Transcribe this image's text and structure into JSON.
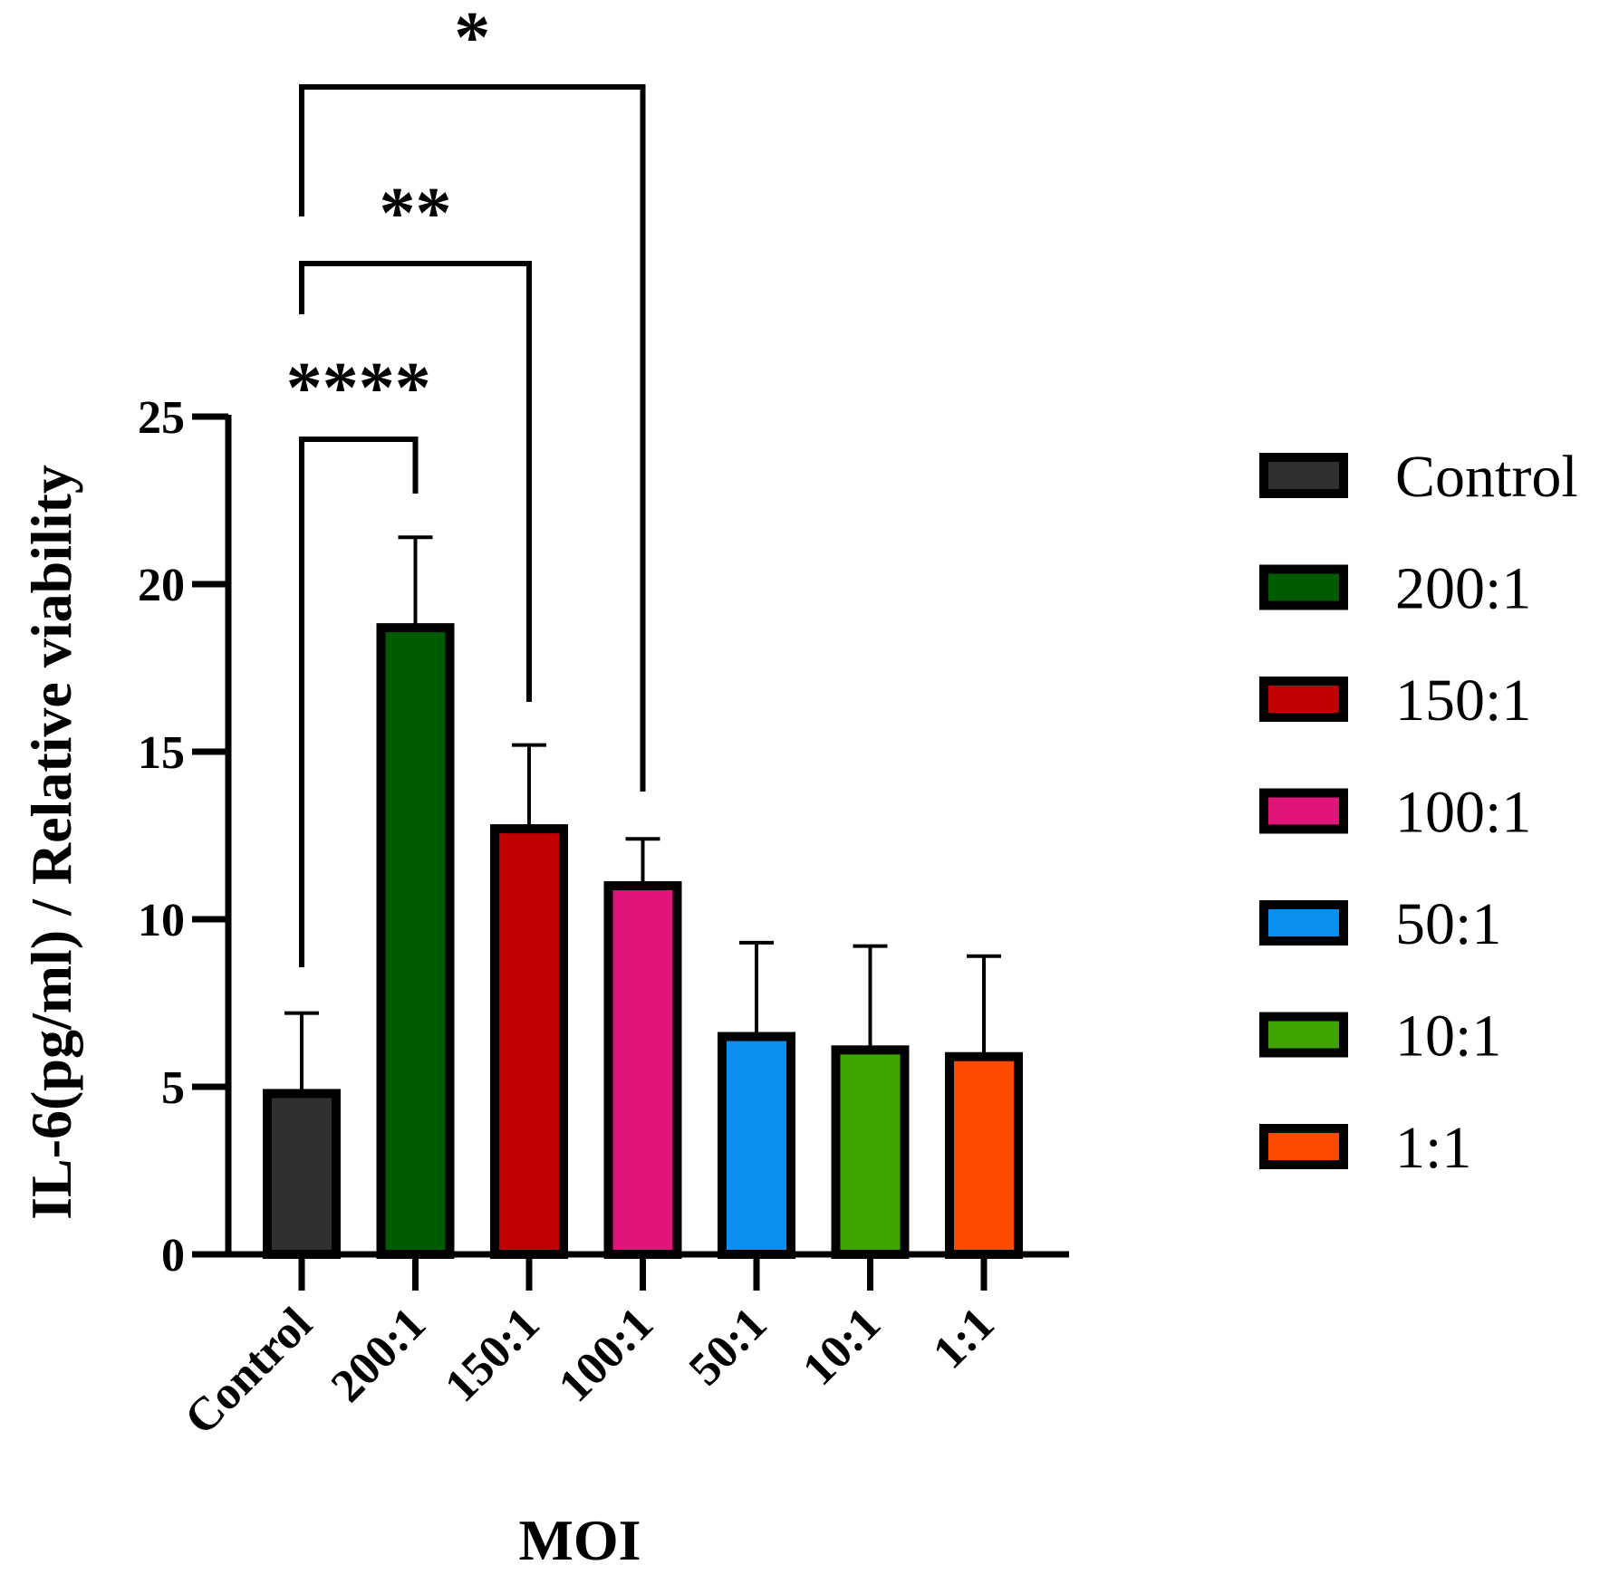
{
  "chart_data": {
    "type": "bar",
    "title": "",
    "xlabel": "MOI",
    "ylabel": "IL-6(pg/ml) / Relative viability",
    "ylim": [
      0,
      25
    ],
    "yticks": [
      0,
      5,
      10,
      15,
      20,
      25
    ],
    "categories": [
      "Control",
      "200:1",
      "150:1",
      "100:1",
      "50:1",
      "10:1",
      "1:1"
    ],
    "values": [
      4.8,
      18.7,
      12.7,
      11.0,
      6.5,
      6.1,
      5.9
    ],
    "errors": [
      2.4,
      2.7,
      2.5,
      1.4,
      2.8,
      3.1,
      3.0
    ],
    "colors": [
      "#303030",
      "#005a00",
      "#c00000",
      "#e0157a",
      "#0a8fef",
      "#3fa300",
      "#fe4a00"
    ],
    "legend": {
      "position": "right",
      "entries": [
        "Control",
        "200:1",
        "150:1",
        "100:1",
        "50:1",
        "10:1",
        "1:1"
      ]
    },
    "significance": [
      {
        "from": "Control",
        "to": "200:1",
        "label": "****"
      },
      {
        "from": "Control",
        "to": "150:1",
        "label": "**"
      },
      {
        "from": "Control",
        "to": "100:1",
        "label": "*"
      }
    ]
  }
}
